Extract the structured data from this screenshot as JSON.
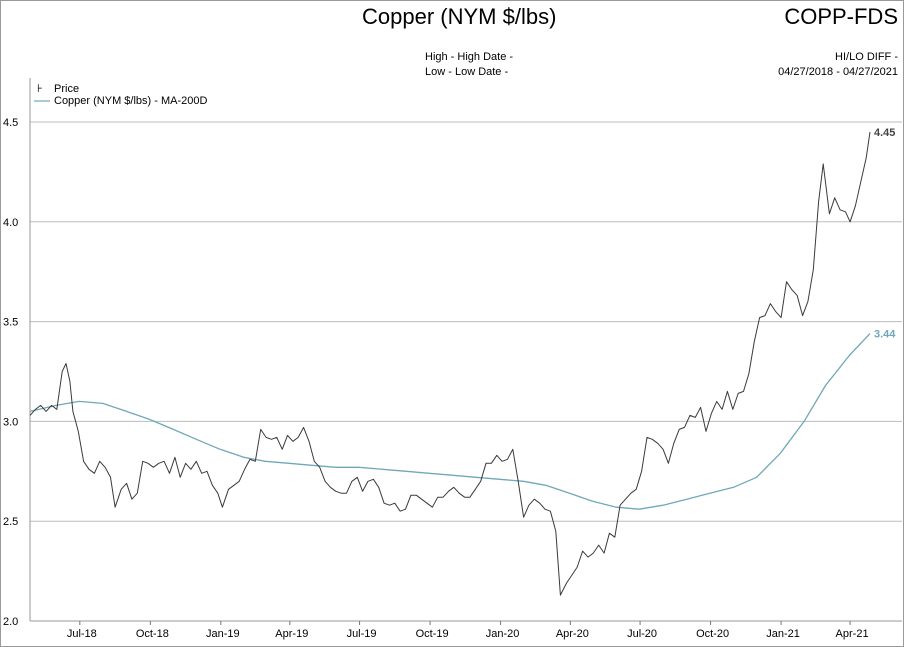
{
  "header": {
    "title": "Copper (NYM $/lbs)",
    "ticker": "COPP-FDS",
    "high_label": "High - High Date -",
    "low_label": "Low - Low Date -",
    "hilo_label": "HI/LO DIFF -",
    "date_range": "04/27/2018 - 04/27/2021"
  },
  "colors": {
    "price": "#3a3a3a",
    "ma": "#6fa8b8",
    "grid": "#bdbdbd"
  },
  "chart_data": {
    "type": "line",
    "title": "Copper (NYM $/lbs)",
    "x_range": [
      "2018-04-27",
      "2021-04-27"
    ],
    "ylim": [
      2.0,
      4.6
    ],
    "yticks": [
      "2.0",
      "2.5",
      "3.0",
      "3.5",
      "4.0",
      "4.5"
    ],
    "xticks": [
      {
        "date": "2018-07-01",
        "label": "Jul-18"
      },
      {
        "date": "2018-10-01",
        "label": "Oct-18"
      },
      {
        "date": "2019-01-01",
        "label": "Jan-19"
      },
      {
        "date": "2019-04-01",
        "label": "Apr-19"
      },
      {
        "date": "2019-07-01",
        "label": "Jul-19"
      },
      {
        "date": "2019-10-01",
        "label": "Oct-19"
      },
      {
        "date": "2020-01-01",
        "label": "Jan-20"
      },
      {
        "date": "2020-04-01",
        "label": "Apr-20"
      },
      {
        "date": "2020-07-01",
        "label": "Jul-20"
      },
      {
        "date": "2020-10-01",
        "label": "Oct-20"
      },
      {
        "date": "2021-01-01",
        "label": "Jan-21"
      },
      {
        "date": "2021-04-01",
        "label": "Apr-21"
      }
    ],
    "grid": true,
    "legend": "top-left",
    "series": [
      {
        "name": "Price",
        "last_label": "4.45",
        "points": [
          [
            "2018-04-27",
            3.03
          ],
          [
            "2018-05-04",
            3.06
          ],
          [
            "2018-05-11",
            3.08
          ],
          [
            "2018-05-18",
            3.05
          ],
          [
            "2018-05-25",
            3.08
          ],
          [
            "2018-06-01",
            3.06
          ],
          [
            "2018-06-08",
            3.25
          ],
          [
            "2018-06-13",
            3.29
          ],
          [
            "2018-06-18",
            3.2
          ],
          [
            "2018-06-22",
            3.05
          ],
          [
            "2018-06-29",
            2.95
          ],
          [
            "2018-07-06",
            2.8
          ],
          [
            "2018-07-13",
            2.76
          ],
          [
            "2018-07-20",
            2.74
          ],
          [
            "2018-07-27",
            2.8
          ],
          [
            "2018-08-03",
            2.77
          ],
          [
            "2018-08-10",
            2.72
          ],
          [
            "2018-08-16",
            2.57
          ],
          [
            "2018-08-24",
            2.66
          ],
          [
            "2018-08-31",
            2.69
          ],
          [
            "2018-09-07",
            2.61
          ],
          [
            "2018-09-14",
            2.64
          ],
          [
            "2018-09-21",
            2.8
          ],
          [
            "2018-09-28",
            2.79
          ],
          [
            "2018-10-05",
            2.77
          ],
          [
            "2018-10-12",
            2.79
          ],
          [
            "2018-10-19",
            2.8
          ],
          [
            "2018-10-26",
            2.74
          ],
          [
            "2018-11-02",
            2.82
          ],
          [
            "2018-11-09",
            2.72
          ],
          [
            "2018-11-16",
            2.79
          ],
          [
            "2018-11-23",
            2.76
          ],
          [
            "2018-11-30",
            2.8
          ],
          [
            "2018-12-07",
            2.74
          ],
          [
            "2018-12-14",
            2.75
          ],
          [
            "2018-12-21",
            2.68
          ],
          [
            "2018-12-28",
            2.64
          ],
          [
            "2019-01-03",
            2.57
          ],
          [
            "2019-01-11",
            2.66
          ],
          [
            "2019-01-18",
            2.68
          ],
          [
            "2019-01-25",
            2.7
          ],
          [
            "2019-02-01",
            2.76
          ],
          [
            "2019-02-08",
            2.81
          ],
          [
            "2019-02-15",
            2.8
          ],
          [
            "2019-02-22",
            2.96
          ],
          [
            "2019-03-01",
            2.92
          ],
          [
            "2019-03-08",
            2.91
          ],
          [
            "2019-03-15",
            2.92
          ],
          [
            "2019-03-22",
            2.86
          ],
          [
            "2019-03-29",
            2.93
          ],
          [
            "2019-04-05",
            2.9
          ],
          [
            "2019-04-12",
            2.92
          ],
          [
            "2019-04-19",
            2.97
          ],
          [
            "2019-04-26",
            2.9
          ],
          [
            "2019-05-03",
            2.8
          ],
          [
            "2019-05-10",
            2.77
          ],
          [
            "2019-05-17",
            2.7
          ],
          [
            "2019-05-24",
            2.67
          ],
          [
            "2019-05-31",
            2.65
          ],
          [
            "2019-06-07",
            2.64
          ],
          [
            "2019-06-14",
            2.64
          ],
          [
            "2019-06-21",
            2.7
          ],
          [
            "2019-06-28",
            2.72
          ],
          [
            "2019-07-05",
            2.65
          ],
          [
            "2019-07-12",
            2.7
          ],
          [
            "2019-07-19",
            2.71
          ],
          [
            "2019-07-26",
            2.67
          ],
          [
            "2019-08-02",
            2.59
          ],
          [
            "2019-08-09",
            2.58
          ],
          [
            "2019-08-16",
            2.59
          ],
          [
            "2019-08-23",
            2.55
          ],
          [
            "2019-08-30",
            2.56
          ],
          [
            "2019-09-06",
            2.63
          ],
          [
            "2019-09-13",
            2.63
          ],
          [
            "2019-09-20",
            2.61
          ],
          [
            "2019-09-27",
            2.59
          ],
          [
            "2019-10-04",
            2.57
          ],
          [
            "2019-10-11",
            2.62
          ],
          [
            "2019-10-18",
            2.62
          ],
          [
            "2019-10-25",
            2.65
          ],
          [
            "2019-11-01",
            2.67
          ],
          [
            "2019-11-08",
            2.64
          ],
          [
            "2019-11-15",
            2.62
          ],
          [
            "2019-11-22",
            2.62
          ],
          [
            "2019-11-29",
            2.66
          ],
          [
            "2019-12-06",
            2.7
          ],
          [
            "2019-12-13",
            2.79
          ],
          [
            "2019-12-20",
            2.79
          ],
          [
            "2019-12-27",
            2.83
          ],
          [
            "2020-01-03",
            2.8
          ],
          [
            "2020-01-10",
            2.81
          ],
          [
            "2020-01-17",
            2.86
          ],
          [
            "2020-01-24",
            2.7
          ],
          [
            "2020-01-31",
            2.52
          ],
          [
            "2020-02-07",
            2.58
          ],
          [
            "2020-02-14",
            2.61
          ],
          [
            "2020-02-21",
            2.59
          ],
          [
            "2020-02-28",
            2.56
          ],
          [
            "2020-03-06",
            2.55
          ],
          [
            "2020-03-13",
            2.45
          ],
          [
            "2020-03-19",
            2.13
          ],
          [
            "2020-03-27",
            2.19
          ],
          [
            "2020-04-03",
            2.23
          ],
          [
            "2020-04-10",
            2.27
          ],
          [
            "2020-04-17",
            2.35
          ],
          [
            "2020-04-24",
            2.32
          ],
          [
            "2020-05-01",
            2.34
          ],
          [
            "2020-05-08",
            2.38
          ],
          [
            "2020-05-15",
            2.34
          ],
          [
            "2020-05-22",
            2.44
          ],
          [
            "2020-05-29",
            2.42
          ],
          [
            "2020-06-05",
            2.58
          ],
          [
            "2020-06-12",
            2.61
          ],
          [
            "2020-06-19",
            2.64
          ],
          [
            "2020-06-26",
            2.66
          ],
          [
            "2020-07-03",
            2.75
          ],
          [
            "2020-07-10",
            2.92
          ],
          [
            "2020-07-17",
            2.91
          ],
          [
            "2020-07-24",
            2.89
          ],
          [
            "2020-07-31",
            2.86
          ],
          [
            "2020-08-07",
            2.79
          ],
          [
            "2020-08-14",
            2.89
          ],
          [
            "2020-08-21",
            2.96
          ],
          [
            "2020-08-28",
            2.97
          ],
          [
            "2020-09-04",
            3.03
          ],
          [
            "2020-09-11",
            3.02
          ],
          [
            "2020-09-18",
            3.07
          ],
          [
            "2020-09-25",
            2.95
          ],
          [
            "2020-10-02",
            3.04
          ],
          [
            "2020-10-09",
            3.1
          ],
          [
            "2020-10-16",
            3.06
          ],
          [
            "2020-10-23",
            3.15
          ],
          [
            "2020-10-30",
            3.06
          ],
          [
            "2020-11-06",
            3.14
          ],
          [
            "2020-11-13",
            3.15
          ],
          [
            "2020-11-20",
            3.24
          ],
          [
            "2020-11-27",
            3.4
          ],
          [
            "2020-12-04",
            3.52
          ],
          [
            "2020-12-11",
            3.53
          ],
          [
            "2020-12-18",
            3.59
          ],
          [
            "2020-12-25",
            3.55
          ],
          [
            "2021-01-01",
            3.52
          ],
          [
            "2021-01-08",
            3.7
          ],
          [
            "2021-01-15",
            3.66
          ],
          [
            "2021-01-22",
            3.63
          ],
          [
            "2021-01-29",
            3.53
          ],
          [
            "2021-02-05",
            3.6
          ],
          [
            "2021-02-12",
            3.76
          ],
          [
            "2021-02-19",
            4.1
          ],
          [
            "2021-02-25",
            4.29
          ],
          [
            "2021-03-05",
            4.04
          ],
          [
            "2021-03-12",
            4.12
          ],
          [
            "2021-03-19",
            4.06
          ],
          [
            "2021-03-26",
            4.05
          ],
          [
            "2021-04-01",
            4.0
          ],
          [
            "2021-04-08",
            4.08
          ],
          [
            "2021-04-15",
            4.2
          ],
          [
            "2021-04-22",
            4.32
          ],
          [
            "2021-04-27",
            4.45
          ]
        ]
      },
      {
        "name": "Copper (NYM $/lbs) - MA-200D",
        "last_label": "3.44",
        "points": [
          [
            "2018-04-27",
            3.05
          ],
          [
            "2018-05-31",
            3.08
          ],
          [
            "2018-06-30",
            3.1
          ],
          [
            "2018-07-31",
            3.09
          ],
          [
            "2018-08-31",
            3.05
          ],
          [
            "2018-09-30",
            3.01
          ],
          [
            "2018-10-31",
            2.96
          ],
          [
            "2018-11-30",
            2.91
          ],
          [
            "2018-12-31",
            2.86
          ],
          [
            "2019-01-31",
            2.82
          ],
          [
            "2019-02-28",
            2.8
          ],
          [
            "2019-03-31",
            2.79
          ],
          [
            "2019-04-30",
            2.78
          ],
          [
            "2019-05-31",
            2.77
          ],
          [
            "2019-06-30",
            2.77
          ],
          [
            "2019-07-31",
            2.76
          ],
          [
            "2019-08-31",
            2.75
          ],
          [
            "2019-09-30",
            2.74
          ],
          [
            "2019-10-31",
            2.73
          ],
          [
            "2019-11-30",
            2.72
          ],
          [
            "2019-12-31",
            2.71
          ],
          [
            "2020-01-31",
            2.7
          ],
          [
            "2020-02-29",
            2.68
          ],
          [
            "2020-03-31",
            2.64
          ],
          [
            "2020-04-30",
            2.6
          ],
          [
            "2020-05-31",
            2.57
          ],
          [
            "2020-06-30",
            2.56
          ],
          [
            "2020-07-31",
            2.58
          ],
          [
            "2020-08-31",
            2.61
          ],
          [
            "2020-09-30",
            2.64
          ],
          [
            "2020-10-31",
            2.67
          ],
          [
            "2020-11-30",
            2.72
          ],
          [
            "2020-12-31",
            2.84
          ],
          [
            "2021-01-31",
            3.0
          ],
          [
            "2021-02-28",
            3.18
          ],
          [
            "2021-03-31",
            3.33
          ],
          [
            "2021-04-27",
            3.44
          ]
        ]
      }
    ]
  }
}
